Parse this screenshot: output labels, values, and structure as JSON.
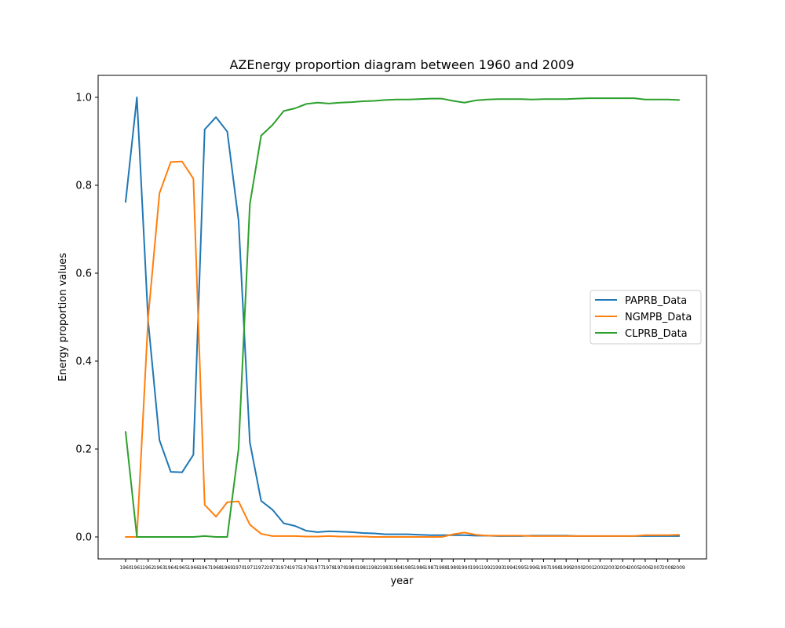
{
  "chart_data": {
    "type": "line",
    "title": "AZEnergy  proportion diagram between 1960 and 2009",
    "xlabel": "year",
    "ylabel": "Energy proportion values",
    "categories": [
      "1960",
      "1961",
      "1962",
      "1963",
      "1964",
      "1965",
      "1966",
      "1967",
      "1968",
      "1969",
      "1970",
      "1971",
      "1972",
      "1973",
      "1974",
      "1975",
      "1976",
      "1977",
      "1978",
      "1979",
      "1980",
      "1981",
      "1982",
      "1983",
      "1984",
      "1985",
      "1986",
      "1987",
      "1988",
      "1989",
      "1990",
      "1991",
      "1992",
      "1993",
      "1994",
      "1995",
      "1996",
      "1997",
      "1998",
      "1999",
      "2000",
      "2001",
      "2002",
      "2003",
      "2004",
      "2005",
      "2006",
      "2007",
      "2008",
      "2009"
    ],
    "yticks": [
      "0.0",
      "0.2",
      "0.4",
      "0.6",
      "0.8",
      "1.0"
    ],
    "ylim": [
      -0.05,
      1.05
    ],
    "legend_position": "center-right",
    "grid": false,
    "series": [
      {
        "name": "PAPRB_Data",
        "color": "#1f77b4",
        "values": [
          0.762,
          1.0,
          0.49,
          0.22,
          0.148,
          0.147,
          0.187,
          0.927,
          0.955,
          0.922,
          0.72,
          0.215,
          0.082,
          0.062,
          0.031,
          0.025,
          0.014,
          0.011,
          0.013,
          0.012,
          0.011,
          0.009,
          0.008,
          0.006,
          0.006,
          0.006,
          0.005,
          0.004,
          0.004,
          0.004,
          0.004,
          0.003,
          0.003,
          0.002,
          0.002,
          0.002,
          0.003,
          0.003,
          0.003,
          0.003,
          0.002,
          0.002,
          0.002,
          0.002,
          0.002,
          0.002,
          0.002,
          0.002,
          0.002,
          0.002
        ]
      },
      {
        "name": "NGMPB_Data",
        "color": "#ff7f0e",
        "values": [
          0.0,
          0.0,
          0.5,
          0.782,
          0.853,
          0.854,
          0.815,
          0.073,
          0.046,
          0.079,
          0.081,
          0.028,
          0.007,
          0.002,
          0.002,
          0.002,
          0.001,
          0.001,
          0.002,
          0.001,
          0.001,
          0.001,
          0.0,
          0.0,
          0.0,
          0.0,
          0.0,
          0.0,
          0.0,
          0.006,
          0.01,
          0.005,
          0.003,
          0.003,
          0.003,
          0.003,
          0.002,
          0.002,
          0.002,
          0.002,
          0.002,
          0.002,
          0.002,
          0.002,
          0.002,
          0.002,
          0.004,
          0.004,
          0.004,
          0.005
        ]
      },
      {
        "name": "CLPRB_Data",
        "color": "#2ca02c",
        "values": [
          0.239,
          0.0,
          0.0,
          0.0,
          0.0,
          0.0,
          0.0,
          0.002,
          0.0,
          0.0,
          0.2,
          0.757,
          0.913,
          0.937,
          0.969,
          0.975,
          0.985,
          0.988,
          0.986,
          0.988,
          0.989,
          0.991,
          0.992,
          0.994,
          0.995,
          0.995,
          0.996,
          0.997,
          0.997,
          0.992,
          0.988,
          0.993,
          0.995,
          0.996,
          0.996,
          0.996,
          0.995,
          0.996,
          0.996,
          0.996,
          0.997,
          0.998,
          0.998,
          0.998,
          0.998,
          0.998,
          0.995,
          0.995,
          0.995,
          0.994
        ]
      }
    ]
  }
}
